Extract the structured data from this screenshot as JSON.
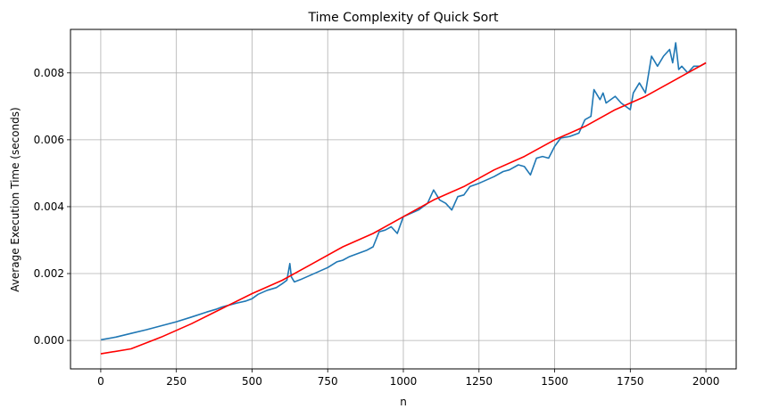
{
  "chart_data": {
    "type": "line",
    "title": "Time Complexity of Quick Sort",
    "xlabel": "n",
    "ylabel": "Average Execution Time (seconds)",
    "xlim": [
      -100,
      2100
    ],
    "ylim": [
      -0.00085,
      0.0093
    ],
    "xticks": [
      0,
      250,
      500,
      750,
      1000,
      1250,
      1500,
      1750,
      2000
    ],
    "xtick_labels": [
      "0",
      "250",
      "500",
      "750",
      "1000",
      "1250",
      "1500",
      "1750",
      "2000"
    ],
    "yticks": [
      0.0,
      0.002,
      0.004,
      0.006,
      0.008
    ],
    "ytick_labels": [
      "0.000",
      "0.002",
      "0.004",
      "0.006",
      "0.008"
    ],
    "grid": true,
    "series": [
      {
        "color": "#1f77b4",
        "x": [
          1,
          50,
          100,
          150,
          200,
          250,
          300,
          350,
          380,
          400,
          450,
          480,
          500,
          520,
          550,
          580,
          600,
          615,
          625,
          630,
          640,
          660,
          700,
          730,
          750,
          780,
          800,
          820,
          850,
          880,
          900,
          920,
          940,
          960,
          980,
          1000,
          1050,
          1080,
          1100,
          1120,
          1140,
          1160,
          1180,
          1200,
          1220,
          1250,
          1300,
          1330,
          1350,
          1380,
          1400,
          1420,
          1440,
          1460,
          1480,
          1500,
          1520,
          1550,
          1580,
          1600,
          1620,
          1630,
          1650,
          1660,
          1670,
          1700,
          1720,
          1750,
          1760,
          1780,
          1800,
          1820,
          1840,
          1860,
          1880,
          1890,
          1900,
          1910,
          1920,
          1940,
          1960,
          1980,
          2000
        ],
        "y": [
          2e-05,
          0.0001,
          0.00021,
          0.00032,
          0.00044,
          0.00056,
          0.0007,
          0.00085,
          0.00093,
          0.001,
          0.00112,
          0.00118,
          0.00125,
          0.00138,
          0.0015,
          0.00158,
          0.0017,
          0.0018,
          0.0023,
          0.0019,
          0.00175,
          0.00182,
          0.00198,
          0.0021,
          0.00218,
          0.00235,
          0.0024,
          0.0025,
          0.0026,
          0.0027,
          0.0028,
          0.00325,
          0.0033,
          0.0034,
          0.0032,
          0.0037,
          0.0039,
          0.0041,
          0.0045,
          0.0042,
          0.0041,
          0.0039,
          0.0043,
          0.00435,
          0.0046,
          0.0047,
          0.0049,
          0.00505,
          0.0051,
          0.00525,
          0.0052,
          0.00495,
          0.00545,
          0.0055,
          0.00545,
          0.0058,
          0.00605,
          0.0061,
          0.0062,
          0.0066,
          0.0067,
          0.0075,
          0.0072,
          0.0074,
          0.0071,
          0.0073,
          0.0071,
          0.0069,
          0.0074,
          0.0077,
          0.0074,
          0.0085,
          0.0082,
          0.0085,
          0.0087,
          0.0083,
          0.0089,
          0.0081,
          0.0082,
          0.008,
          0.0082,
          0.0082,
          0.0083
        ]
      },
      {
        "color": "#ff0000",
        "x": [
          0,
          100,
          200,
          300,
          400,
          500,
          600,
          700,
          800,
          900,
          1000,
          1100,
          1200,
          1300,
          1400,
          1500,
          1600,
          1700,
          1800,
          1900,
          2000
        ],
        "y": [
          -0.0004,
          -0.00025,
          0.0001,
          0.0005,
          0.00095,
          0.0014,
          0.0018,
          0.0023,
          0.0028,
          0.0032,
          0.0037,
          0.0042,
          0.0046,
          0.0051,
          0.0055,
          0.006,
          0.0064,
          0.0069,
          0.0073,
          0.0078,
          0.0083
        ]
      }
    ]
  }
}
